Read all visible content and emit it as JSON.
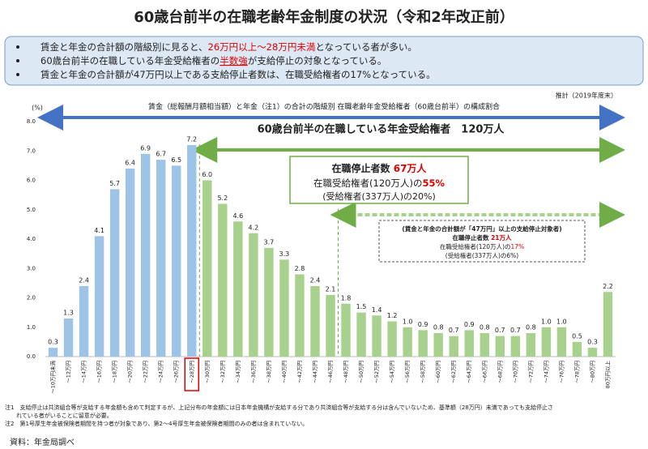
{
  "header": {
    "title": "60歳台前半の在職老齢年金制度の状況（令和2年改正前）",
    "bullets": [
      {
        "before": "賃金と年金の合計額の階級別に見ると、",
        "highlight": "26万円以上～28万円未満",
        "after": "となっている者が多い。"
      },
      {
        "before": "60歳台前半の在職している年金受給権者の",
        "highlight": "半数強",
        "after": "が支給停止の対象となっている。"
      },
      {
        "before": "賃金と年金の合計額が47万円以上である支給停止者数は、在職受給権者の17%となっている。"
      }
    ]
  },
  "chart_data": {
    "type": "bar",
    "y_unit": "(%)",
    "estimate_note": "推計（2019年度末）",
    "range_caption": "賃金（総報酬月額相当額）と年金（注1）の合計の階級別 在職老齢年金受給権者（60歳台前半）の構成割合",
    "total_caption": "60歳台前半の在職している年金受給権者　120万人",
    "box1": {
      "line1": {
        "before": "在職停止者数 ",
        "highlight": "67万人"
      },
      "line2": {
        "before": "在職受給権者(120万人)の",
        "highlight": "55%"
      },
      "line3": "(受給権者(337万人)の20%)"
    },
    "box2": {
      "line1": "(賃金と年金の合計額が「47万円」以上の支給停止対象者)",
      "line2": {
        "before": "在職停止者数 ",
        "highlight": "21万人"
      },
      "line3": {
        "before": "在職受給権者(120万人)の",
        "highlight": "17%"
      },
      "line4": "(受給権者(337万人)の6%)"
    },
    "categories": [
      "～10万円未満",
      "～12万円",
      "～14万円",
      "～16万円",
      "～18万円",
      "～20万円",
      "～22万円",
      "～24万円",
      "～26万円",
      "～28万円",
      "～30万円",
      "～32万円",
      "～34万円",
      "～36万円",
      "～38万円",
      "～40万円",
      "～42万円",
      "～44万円",
      "～46万円",
      "～48万円",
      "～50万円",
      "～52万円",
      "～54万円",
      "～56万円",
      "～58万円",
      "～60万円",
      "～62万円",
      "～64万円",
      "～66万円",
      "～68万円",
      "～70万円",
      "～72万円",
      "～74万円",
      "～76万円",
      "～78万円",
      "～80万円",
      "80万円以上"
    ],
    "series": [
      {
        "color": "#9dc3e6",
        "values": [
          0.3,
          1.3,
          2.4,
          4.1,
          5.7,
          6.4,
          6.9,
          6.7,
          6.5,
          7.2,
          null,
          null,
          null,
          null,
          null,
          null,
          null,
          null,
          null,
          null,
          null,
          null,
          null,
          null,
          null,
          null,
          null,
          null,
          null,
          null,
          null,
          null,
          null,
          null,
          null,
          null,
          null
        ],
        "value_labels": [
          "0.3",
          "1.3",
          "2.4",
          "4.1",
          "5.7",
          "6.4",
          "6.9",
          "6.7",
          "6.5",
          "7.2",
          null,
          null,
          null,
          null,
          null,
          null,
          null,
          null,
          null,
          null,
          null,
          null,
          null,
          null,
          null,
          null,
          null,
          null,
          null,
          null,
          null,
          null,
          null,
          null,
          null,
          null,
          null
        ]
      },
      {
        "color": "#a9d18e",
        "values": [
          null,
          null,
          null,
          null,
          null,
          null,
          null,
          null,
          null,
          null,
          6.0,
          5.2,
          4.6,
          4.2,
          3.7,
          3.3,
          2.8,
          2.4,
          2.1,
          1.8,
          1.5,
          1.4,
          1.2,
          1.0,
          0.9,
          0.8,
          0.7,
          0.9,
          0.8,
          0.7,
          0.7,
          0.8,
          1.0,
          1.0,
          0.5,
          0.3,
          2.2
        ],
        "value_labels": [
          null,
          null,
          null,
          null,
          null,
          null,
          null,
          null,
          null,
          null,
          "6.0",
          "5.2",
          "4.6",
          "4.2",
          "3.7",
          "3.3",
          "2.8",
          "2.4",
          "2.1",
          "1.8",
          "1.5",
          "1.4",
          "1.2",
          "1.0",
          "0.9",
          "0.8",
          "0.7",
          "0.9",
          "0.8",
          "0.7",
          "0.7",
          "0.8",
          "1.0",
          "1.0",
          "0.5",
          "0.3",
          "2.2"
        ]
      }
    ],
    "highlight_category": 9,
    "ylim": [
      0,
      8
    ],
    "yticks": [
      {
        "value": 0,
        "label": "0.0"
      },
      {
        "value": 1,
        "label": "1.0"
      },
      {
        "value": 2,
        "label": "2.0"
      },
      {
        "value": 3,
        "label": "3.0"
      },
      {
        "value": 4,
        "label": "4.0"
      },
      {
        "value": 5,
        "label": "5.0"
      },
      {
        "value": 6,
        "label": "6.0"
      },
      {
        "value": 7,
        "label": "7.0"
      },
      {
        "value": 8,
        "label": "8.0"
      }
    ],
    "grid": false
  },
  "notes": [
    "注1　支給停止は共済組合等が支給する年金額も含めて判定するが、上記分布の年金額には日本年金機構が支給する分であり共済組合等が支給する分は含んでいないため、基準額（28万円）未満であっても支給停止さ",
    "れている者がいることに留意が必要。",
    "注2　第1号厚生年金被保険者期間を持つ者が対象であり、第2～4号厚生年金被保険者期間のみの者は含まれていない。"
  ],
  "source": "資料：年金局調べ"
}
